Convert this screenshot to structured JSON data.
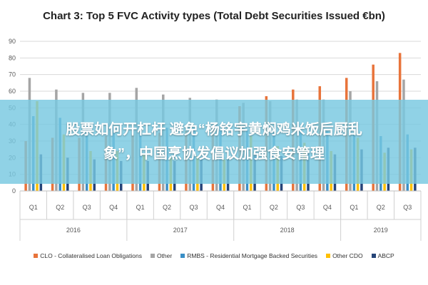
{
  "overlay": {
    "line1": "股票如何开杠杆 避免“杨铭宇黄焖鸡米饭后厨乱",
    "line2": "象”，中国烹协发倡议加强食安管理"
  },
  "chart_data": {
    "type": "bar",
    "title": "Chart 3: Top 5 FVC Activity types (Total Debt Securities Issued €bn)",
    "xlabel": "",
    "ylabel": "",
    "ylim": [
      0,
      90
    ],
    "yticks": [
      0,
      10,
      20,
      30,
      40,
      50,
      60,
      70,
      80,
      90
    ],
    "grid": true,
    "legend_position": "bottom",
    "categories": [
      "Q1",
      "Q2",
      "Q3",
      "Q4",
      "Q1",
      "Q2",
      "Q3",
      "Q4",
      "Q1",
      "Q2",
      "Q3",
      "Q4",
      "Q1",
      "Q2",
      "Q3"
    ],
    "years": [
      {
        "label": "2016",
        "count": 4
      },
      {
        "label": "2017",
        "count": 4
      },
      {
        "label": "2018",
        "count": 4
      },
      {
        "label": "2019",
        "count": 3
      }
    ],
    "series": [
      {
        "name": "CLO - Collateralised Loan Obligations",
        "color": "#e8743b",
        "values": [
          30,
          32,
          32,
          33,
          34,
          35,
          36,
          38,
          51,
          57,
          61,
          63,
          68,
          76,
          83
        ]
      },
      {
        "name": "Other",
        "color": "#a5a5a5",
        "values": [
          68,
          61,
          59,
          59,
          62,
          58,
          56,
          55,
          53,
          54,
          55,
          55,
          60,
          66,
          67
        ]
      },
      {
        "name": "RMBS - Residential Mortgage Backed Securities",
        "color": "#3a8fc7",
        "values": [
          45,
          44,
          40,
          39,
          39,
          38,
          38,
          37,
          37,
          37,
          36,
          36,
          34,
          33,
          34
        ]
      },
      {
        "name": "Other CDO",
        "color": "#ffc000",
        "values": [
          54,
          34,
          24,
          24,
          22,
          20,
          21,
          19,
          33,
          27,
          29,
          24,
          32,
          23,
          25
        ]
      },
      {
        "name": "ABCP",
        "color": "#264478",
        "values": [
          22,
          20,
          19,
          18,
          18,
          18,
          19,
          19,
          22,
          21,
          23,
          22,
          25,
          26,
          26
        ]
      }
    ]
  }
}
